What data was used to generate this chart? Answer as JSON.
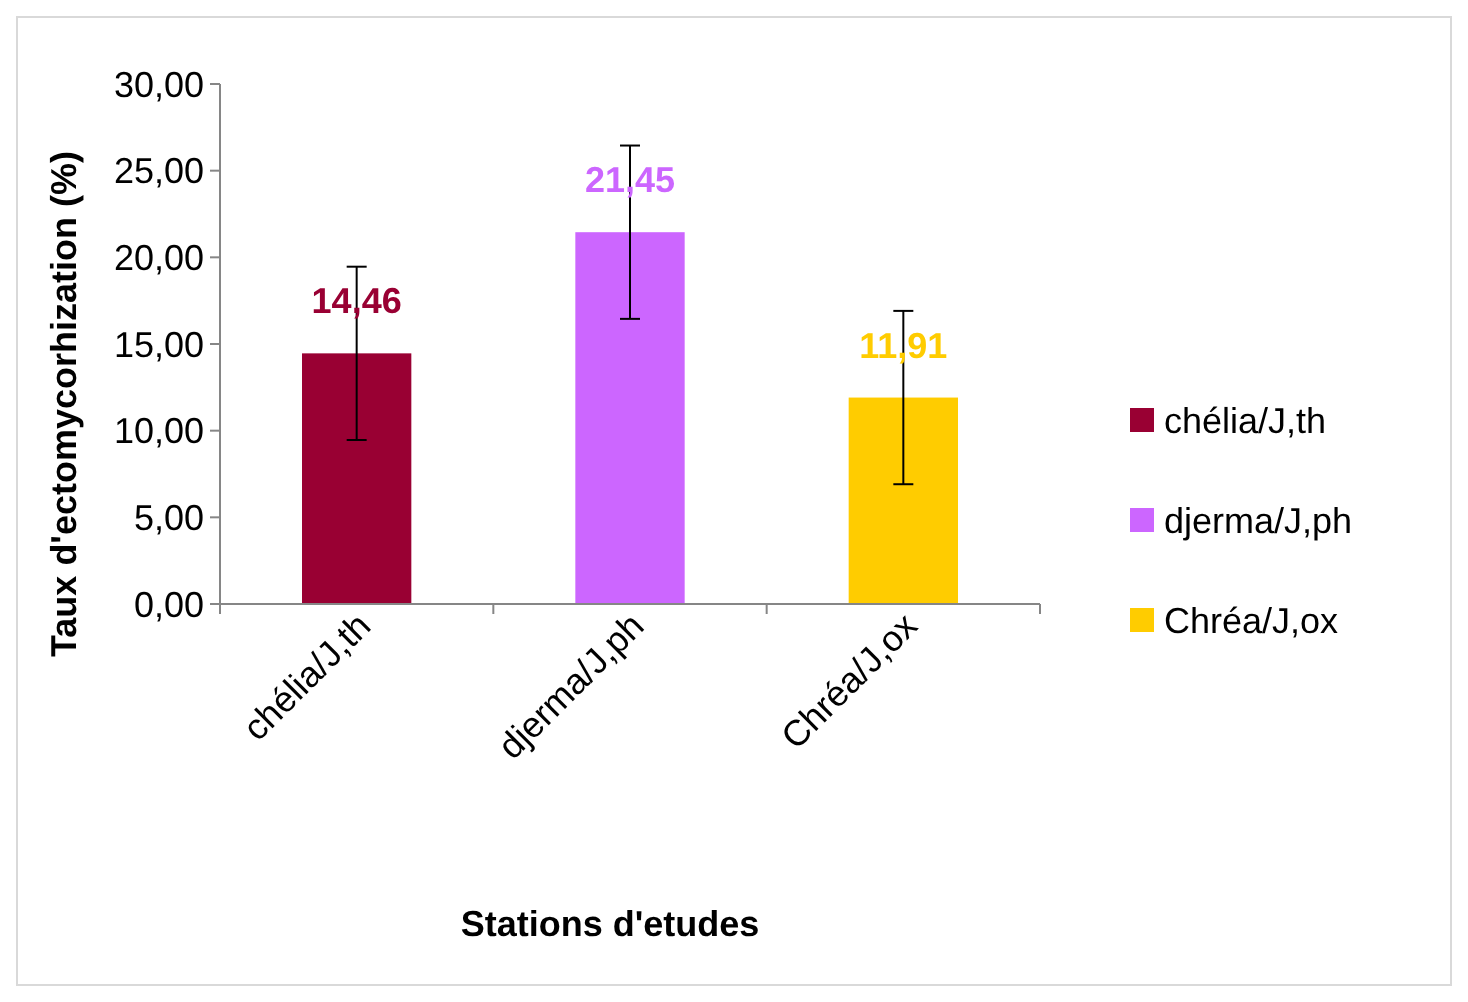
{
  "chart_data": {
    "type": "bar",
    "xlabel": "Stations d'etudes",
    "ylabel": "Taux d'ectomycorhization (%)",
    "categories": [
      "chélia/J,th",
      "djerma/J,ph",
      "Chréa/J,ox"
    ],
    "series": [
      {
        "name": "chélia/J,th",
        "color": "#990033",
        "values": [
          14.46,
          null,
          null
        ],
        "errors": [
          5,
          null,
          null
        ]
      },
      {
        "name": "djerma/J,ph",
        "color": "#cc66ff",
        "values": [
          null,
          21.45,
          null
        ],
        "errors": [
          null,
          5,
          null
        ]
      },
      {
        "name": "Chréa/J,ox",
        "color": "#ffcc00",
        "values": [
          null,
          null,
          11.91
        ],
        "errors": [
          null,
          null,
          5
        ]
      }
    ],
    "ylim": [
      0,
      30
    ],
    "yticks": [
      {
        "value": 0,
        "label": "0,00"
      },
      {
        "value": 5,
        "label": "5,00"
      },
      {
        "value": 10,
        "label": "10,00"
      },
      {
        "value": 15,
        "label": "15,00"
      },
      {
        "value": 20,
        "label": "20,00"
      },
      {
        "value": 25,
        "label": "25,00"
      },
      {
        "value": 30,
        "label": "30,00"
      }
    ],
    "value_labels": [
      "14,46",
      "21,45",
      "11,91"
    ],
    "legend": "right",
    "grid": false
  }
}
